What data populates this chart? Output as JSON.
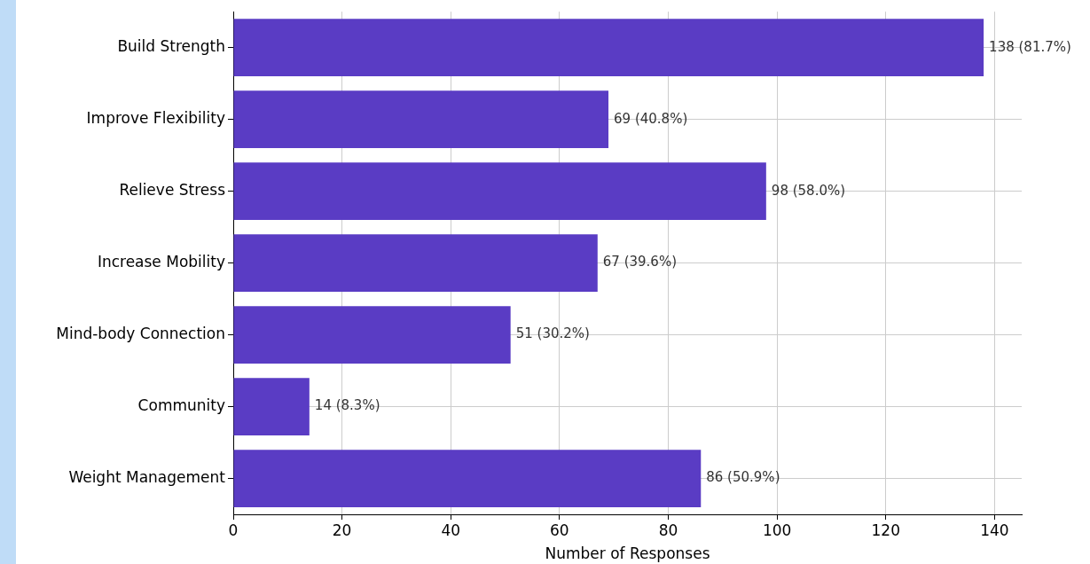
{
  "chart_data": {
    "type": "bar",
    "orientation": "horizontal",
    "xlabel": "Number of Responses",
    "categories": [
      "Build Strength",
      "Improve Flexibility",
      "Relieve Stress",
      "Increase Mobility",
      "Mind-body Connection",
      "Community",
      "Weight Management"
    ],
    "values": [
      138,
      69,
      98,
      67,
      51,
      14,
      86
    ],
    "color": "#5a3cc4",
    "value_labels": [
      "138 (81.7%)",
      "69 (40.8%)",
      "98 (58.0%)",
      "67 (39.6%)",
      "51 (30.2%)",
      "14 (8.3%)",
      "86 (50.9%)"
    ],
    "xlim": [
      0,
      145
    ],
    "xticks": [
      0,
      20,
      40,
      60,
      80,
      100,
      120,
      140
    ],
    "grid": true,
    "legend": false
  }
}
